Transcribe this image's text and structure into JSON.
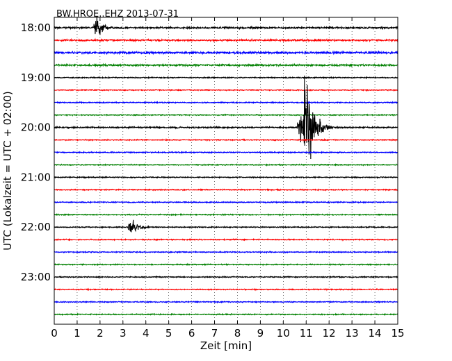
{
  "chart_data": {
    "type": "line",
    "title": "BW.HROE..EHZ 2013-07-31",
    "xlabel": "Zeit  [min]",
    "ylabel": "UTC (Lokalzeit = UTC + 02:00)",
    "xlim": [
      0,
      15
    ],
    "x_ticks": [
      "0",
      "1",
      "2",
      "3",
      "4",
      "5",
      "6",
      "7",
      "8",
      "9",
      "10",
      "11",
      "12",
      "13",
      "14",
      "15"
    ],
    "y_tick_labels": [
      "18:00",
      "19:00",
      "20:00",
      "21:00",
      "22:00",
      "23:00"
    ],
    "grid": "vertical dotted",
    "trace_colors": [
      "#000000",
      "#ff0000",
      "#0000ff",
      "#008000"
    ],
    "traces": [
      {
        "start": "18:00",
        "color": "#000000",
        "amplitude": 0.25,
        "events": [
          {
            "minute": 1.8,
            "amp": 0.5
          }
        ]
      },
      {
        "start": "18:15",
        "color": "#ff0000",
        "amplitude": 0.25,
        "events": []
      },
      {
        "start": "18:30",
        "color": "#0000ff",
        "amplitude": 0.3,
        "events": []
      },
      {
        "start": "18:45",
        "color": "#008000",
        "amplitude": 0.25,
        "events": []
      },
      {
        "start": "19:00",
        "color": "#000000",
        "amplitude": 0.15,
        "events": []
      },
      {
        "start": "19:15",
        "color": "#ff0000",
        "amplitude": 0.15,
        "events": []
      },
      {
        "start": "19:30",
        "color": "#0000ff",
        "amplitude": 0.15,
        "events": []
      },
      {
        "start": "19:45",
        "color": "#008000",
        "amplitude": 0.15,
        "events": []
      },
      {
        "start": "20:00",
        "color": "#000000",
        "amplitude": 0.2,
        "events": [
          {
            "minute": 10.7,
            "amp": 1.0
          },
          {
            "minute": 10.95,
            "amp": 2.5
          }
        ]
      },
      {
        "start": "20:15",
        "color": "#ff0000",
        "amplitude": 0.15,
        "events": []
      },
      {
        "start": "20:30",
        "color": "#0000ff",
        "amplitude": 0.15,
        "events": []
      },
      {
        "start": "20:45",
        "color": "#008000",
        "amplitude": 0.15,
        "events": []
      },
      {
        "start": "21:00",
        "color": "#000000",
        "amplitude": 0.15,
        "events": []
      },
      {
        "start": "21:15",
        "color": "#ff0000",
        "amplitude": 0.15,
        "events": []
      },
      {
        "start": "21:30",
        "color": "#0000ff",
        "amplitude": 0.15,
        "events": []
      },
      {
        "start": "21:45",
        "color": "#008000",
        "amplitude": 0.15,
        "events": []
      },
      {
        "start": "22:00",
        "color": "#000000",
        "amplitude": 0.15,
        "events": [
          {
            "minute": 3.3,
            "amp": 0.4
          }
        ]
      },
      {
        "start": "22:15",
        "color": "#ff0000",
        "amplitude": 0.15,
        "events": []
      },
      {
        "start": "22:30",
        "color": "#0000ff",
        "amplitude": 0.15,
        "events": []
      },
      {
        "start": "22:45",
        "color": "#008000",
        "amplitude": 0.15,
        "events": []
      },
      {
        "start": "23:00",
        "color": "#000000",
        "amplitude": 0.15,
        "events": []
      },
      {
        "start": "23:15",
        "color": "#ff0000",
        "amplitude": 0.15,
        "events": []
      },
      {
        "start": "23:30",
        "color": "#0000ff",
        "amplitude": 0.15,
        "events": []
      },
      {
        "start": "23:45",
        "color": "#008000",
        "amplitude": 0.15,
        "events": []
      }
    ]
  }
}
